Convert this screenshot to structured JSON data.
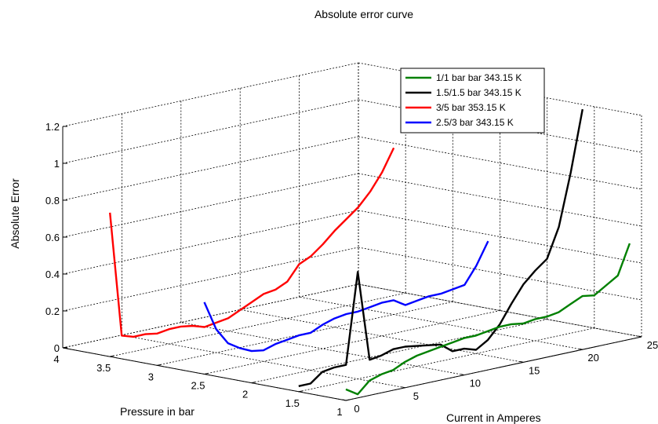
{
  "chart_data": {
    "type": "line",
    "projection": "3d",
    "title": "Absolute error curve",
    "xlabel": "Current in Amperes",
    "ylabel": "Pressure in bar",
    "zlabel": "Absolute Error",
    "xlim": [
      0,
      25
    ],
    "ylim": [
      1,
      4
    ],
    "zlim": [
      0,
      1.2
    ],
    "x_ticks": [
      "0",
      "5",
      "10",
      "15",
      "20",
      "25"
    ],
    "y_ticks": [
      "1",
      "1.5",
      "2",
      "2.5",
      "3",
      "3.5",
      "4"
    ],
    "z_ticks": [
      "0",
      "0.2",
      "0.4",
      "0.6",
      "0.8",
      "1",
      "1.2"
    ],
    "grid": true,
    "legend_position": "top-right",
    "series": [
      {
        "name": "1/1 bar bar 343.15 K",
        "color": "#008000",
        "pressure": 1,
        "x": [
          0,
          1,
          2,
          3,
          4,
          5,
          6,
          7,
          8,
          9,
          10,
          11,
          12,
          13,
          14,
          15,
          16,
          17,
          18,
          19,
          20,
          21,
          22,
          23,
          24
        ],
        "z": [
          0.06,
          0.02,
          0.08,
          0.1,
          0.11,
          0.14,
          0.16,
          0.17,
          0.18,
          0.19,
          0.2,
          0.2,
          0.21,
          0.22,
          0.22,
          0.21,
          0.22,
          0.22,
          0.23,
          0.26,
          0.29,
          0.28,
          0.32,
          0.36,
          0.52
        ]
      },
      {
        "name": "1.5/1.5 bar 343.15 K",
        "color": "#000000",
        "pressure": 1.5,
        "x": [
          0,
          1,
          2,
          3,
          4,
          5,
          6,
          7,
          8,
          9,
          10,
          11,
          12,
          13,
          14,
          15,
          16,
          17,
          18,
          19,
          20,
          21,
          22,
          23,
          24
        ],
        "z": [
          0.03,
          0.03,
          0.08,
          0.09,
          0.09,
          0.58,
          0.09,
          0.1,
          0.12,
          0.12,
          0.11,
          0.1,
          0.09,
          0.04,
          0.04,
          0.02,
          0.06,
          0.13,
          0.23,
          0.32,
          0.38,
          0.43,
          0.59,
          0.87,
          1.2
        ]
      },
      {
        "name": "3/5 bar 353.15 K",
        "color": "#ff0000",
        "pressure": 3.5,
        "x": [
          0,
          1,
          2,
          3,
          4,
          5,
          6,
          7,
          8,
          9,
          10,
          11,
          12,
          13,
          14,
          15,
          16,
          17,
          18,
          19,
          20,
          21,
          22,
          23,
          24
        ],
        "z": [
          0.78,
          0.1,
          0.08,
          0.08,
          0.07,
          0.08,
          0.08,
          0.07,
          0.05,
          0.06,
          0.07,
          0.1,
          0.13,
          0.16,
          0.17,
          0.2,
          0.28,
          0.31,
          0.36,
          0.42,
          0.47,
          0.52,
          0.59,
          0.68,
          0.8
        ]
      },
      {
        "name": "2.5/3 bar 343.15 K",
        "color": "#0000ff",
        "pressure": 2.5,
        "x": [
          0,
          1,
          2,
          3,
          4,
          5,
          6,
          7,
          8,
          9,
          10,
          11,
          12,
          13,
          14,
          15,
          16,
          17,
          18,
          19,
          20,
          21,
          22,
          23,
          24
        ],
        "z": [
          0.39,
          0.23,
          0.14,
          0.1,
          0.07,
          0.06,
          0.08,
          0.09,
          0.1,
          0.1,
          0.13,
          0.15,
          0.16,
          0.16,
          0.17,
          0.18,
          0.18,
          0.14,
          0.15,
          0.16,
          0.16,
          0.17,
          0.18,
          0.27,
          0.39
        ]
      }
    ]
  }
}
